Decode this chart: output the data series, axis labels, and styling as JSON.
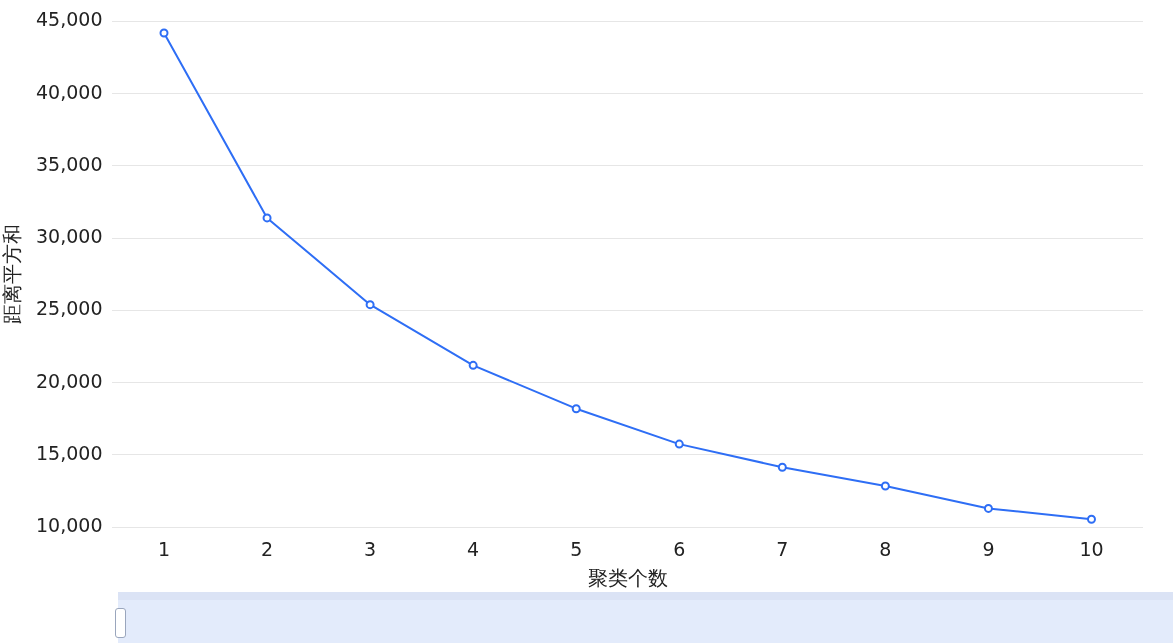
{
  "chart_data": {
    "type": "line",
    "xlabel": "聚类个数",
    "ylabel": "距离平方和",
    "categories": [
      "1",
      "2",
      "3",
      "4",
      "5",
      "6",
      "7",
      "8",
      "9",
      "10"
    ],
    "series": [
      {
        "color": "#2e6ef5",
        "values": [
          44200,
          31400,
          25400,
          21200,
          18200,
          15750,
          14150,
          12850,
          11300,
          10550
        ]
      }
    ],
    "ylim": [
      10000,
      45000
    ],
    "yticks": [
      {
        "value": 10000,
        "label": "10,000"
      },
      {
        "value": 15000,
        "label": "15,000"
      },
      {
        "value": 20000,
        "label": "20,000"
      },
      {
        "value": 25000,
        "label": "25,000"
      },
      {
        "value": 30000,
        "label": "30,000"
      },
      {
        "value": 35000,
        "label": "35,000"
      },
      {
        "value": 40000,
        "label": "40,000"
      },
      {
        "value": 45000,
        "label": "45,000"
      }
    ],
    "grid": "y",
    "legend": false,
    "marker": "circle",
    "line_style": "solid"
  }
}
